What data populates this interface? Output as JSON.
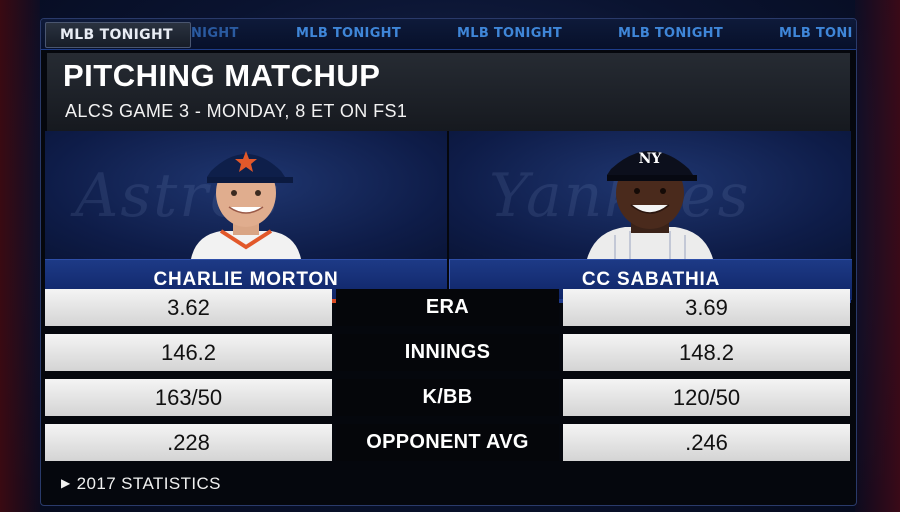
{
  "ticker": {
    "active": "MLB TONIGHT",
    "items": [
      "NIGHT",
      "MLB TONIGHT",
      "MLB TONIGHT",
      "MLB TONIGHT",
      "MLB TONI"
    ]
  },
  "header": {
    "title": "PITCHING MATCHUP",
    "subtitle": "ALCS GAME 3 - MONDAY, 8 ET ON FS1"
  },
  "players": {
    "left": {
      "name": "CHARLIE MORTON",
      "team_script": "Astros",
      "cap_icon": "astros-star-icon"
    },
    "right": {
      "name": "CC SABATHIA",
      "team_script": "Yankees",
      "cap_icon": "yankees-ny-icon"
    }
  },
  "stats": [
    {
      "label": "ERA",
      "left": "3.62",
      "right": "3.69"
    },
    {
      "label": "INNINGS",
      "left": "146.2",
      "right": "148.2"
    },
    {
      "label": "K/BB",
      "left": "163/50",
      "right": "120/50"
    },
    {
      "label": "OPPONENT AVG",
      "left": ".228",
      "right": ".246"
    }
  ],
  "footer": {
    "label": "2017 STATISTICS"
  },
  "colors": {
    "accent_orange": "#d94a22",
    "name_bar_blue": "#1d3a86",
    "ticker_blue": "#3f86d8"
  }
}
